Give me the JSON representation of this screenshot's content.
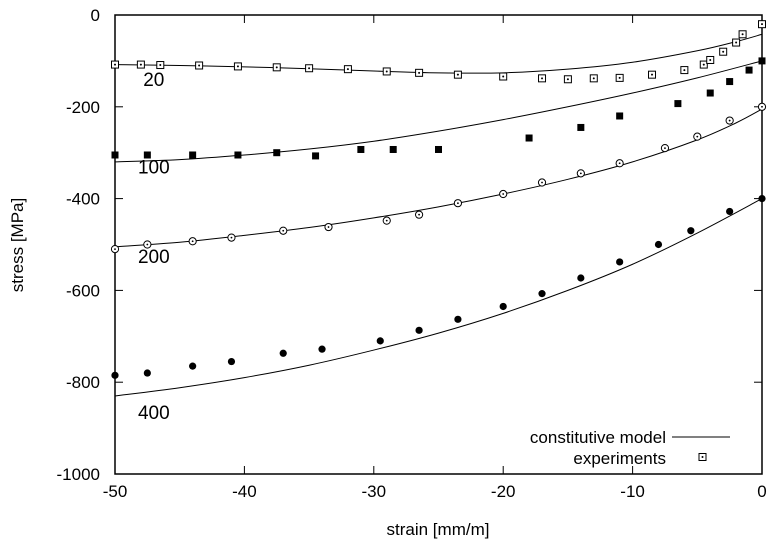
{
  "chart_data": {
    "type": "scatter",
    "xlabel": "strain [mm/m]",
    "ylabel": "stress [MPa]",
    "xlim": [
      -50,
      0
    ],
    "ylim": [
      -1000,
      0
    ],
    "x_ticks": [
      -50,
      -40,
      -30,
      -20,
      -10,
      0
    ],
    "y_ticks": [
      -1000,
      -800,
      -600,
      -400,
      -200,
      0
    ],
    "grid": false,
    "legend_position": "bottom-right",
    "legend": [
      {
        "label": "constitutive model",
        "marker": "line"
      },
      {
        "label": "experiments",
        "marker": "square-dot"
      }
    ],
    "curve_labels": [
      {
        "text": "20",
        "x": -47,
        "y": -155
      },
      {
        "text": "100",
        "x": -47,
        "y": -345
      },
      {
        "text": "200",
        "x": -47,
        "y": -540
      },
      {
        "text": "400",
        "x": -47,
        "y": -880
      }
    ],
    "series": [
      {
        "marker": "open-square-dot",
        "model": [
          [
            -50,
            -108
          ],
          [
            -45,
            -110
          ],
          [
            -40,
            -113
          ],
          [
            -35,
            -117
          ],
          [
            -30,
            -122
          ],
          [
            -25,
            -126
          ],
          [
            -20,
            -126
          ],
          [
            -15,
            -118
          ],
          [
            -10,
            -103
          ],
          [
            -5,
            -78
          ],
          [
            -2,
            -58
          ],
          [
            0,
            -42
          ]
        ],
        "experiments": [
          [
            -50,
            -108
          ],
          [
            -48,
            -108
          ],
          [
            -46.5,
            -109
          ],
          [
            -43.5,
            -110
          ],
          [
            -40.5,
            -112
          ],
          [
            -37.5,
            -114
          ],
          [
            -35,
            -116
          ],
          [
            -32,
            -118
          ],
          [
            -29,
            -123
          ],
          [
            -26.5,
            -126
          ],
          [
            -23.5,
            -130
          ],
          [
            -20,
            -134
          ],
          [
            -17,
            -138
          ],
          [
            -15,
            -140
          ],
          [
            -13,
            -138
          ],
          [
            -11,
            -137
          ],
          [
            -8.5,
            -130
          ],
          [
            -6,
            -120
          ],
          [
            -4.5,
            -108
          ],
          [
            -4,
            -98
          ],
          [
            -3,
            -80
          ],
          [
            -2,
            -60
          ],
          [
            -1.5,
            -42
          ],
          [
            0,
            -20
          ]
        ]
      },
      {
        "marker": "filled-square",
        "model": [
          [
            -50,
            -320
          ],
          [
            -45,
            -315
          ],
          [
            -40,
            -305
          ],
          [
            -35,
            -292
          ],
          [
            -30,
            -275
          ],
          [
            -25,
            -253
          ],
          [
            -20,
            -228
          ],
          [
            -15,
            -200
          ],
          [
            -10,
            -170
          ],
          [
            -5,
            -137
          ],
          [
            0,
            -100
          ]
        ],
        "experiments": [
          [
            -50,
            -305
          ],
          [
            -47.5,
            -305
          ],
          [
            -44,
            -305
          ],
          [
            -40.5,
            -305
          ],
          [
            -37.5,
            -300
          ],
          [
            -34.5,
            -307
          ],
          [
            -31,
            -293
          ],
          [
            -28.5,
            -293
          ],
          [
            -25,
            -293
          ],
          [
            -18,
            -268
          ],
          [
            -14,
            -245
          ],
          [
            -11,
            -220
          ],
          [
            -6.5,
            -193
          ],
          [
            -4,
            -170
          ],
          [
            -2.5,
            -145
          ],
          [
            -1,
            -120
          ],
          [
            0,
            -100
          ]
        ]
      },
      {
        "marker": "open-circle-dot",
        "model": [
          [
            -50,
            -505
          ],
          [
            -45,
            -495
          ],
          [
            -40,
            -480
          ],
          [
            -35,
            -463
          ],
          [
            -30,
            -442
          ],
          [
            -25,
            -418
          ],
          [
            -20,
            -390
          ],
          [
            -15,
            -358
          ],
          [
            -10,
            -320
          ],
          [
            -5,
            -272
          ],
          [
            -2,
            -235
          ],
          [
            0,
            -205
          ]
        ],
        "experiments": [
          [
            -50,
            -510
          ],
          [
            -47.5,
            -500
          ],
          [
            -44,
            -493
          ],
          [
            -41,
            -485
          ],
          [
            -37,
            -470
          ],
          [
            -33.5,
            -462
          ],
          [
            -29,
            -448
          ],
          [
            -26.5,
            -435
          ],
          [
            -23.5,
            -410
          ],
          [
            -20,
            -390
          ],
          [
            -17,
            -365
          ],
          [
            -14,
            -345
          ],
          [
            -11,
            -323
          ],
          [
            -7.5,
            -290
          ],
          [
            -5,
            -265
          ],
          [
            -2.5,
            -230
          ],
          [
            0,
            -200
          ]
        ]
      },
      {
        "marker": "filled-circle",
        "model": [
          [
            -50,
            -830
          ],
          [
            -45,
            -812
          ],
          [
            -40,
            -790
          ],
          [
            -35,
            -763
          ],
          [
            -30,
            -730
          ],
          [
            -25,
            -693
          ],
          [
            -20,
            -650
          ],
          [
            -15,
            -600
          ],
          [
            -10,
            -543
          ],
          [
            -5,
            -475
          ],
          [
            0,
            -400
          ]
        ],
        "experiments": [
          [
            -50,
            -785
          ],
          [
            -47.5,
            -780
          ],
          [
            -44,
            -765
          ],
          [
            -41,
            -755
          ],
          [
            -37,
            -737
          ],
          [
            -34,
            -728
          ],
          [
            -29.5,
            -710
          ],
          [
            -26.5,
            -687
          ],
          [
            -23.5,
            -663
          ],
          [
            -20,
            -635
          ],
          [
            -17,
            -607
          ],
          [
            -14,
            -573
          ],
          [
            -11,
            -538
          ],
          [
            -8,
            -500
          ],
          [
            -5.5,
            -470
          ],
          [
            -2.5,
            -428
          ],
          [
            0,
            -400
          ]
        ]
      }
    ]
  }
}
